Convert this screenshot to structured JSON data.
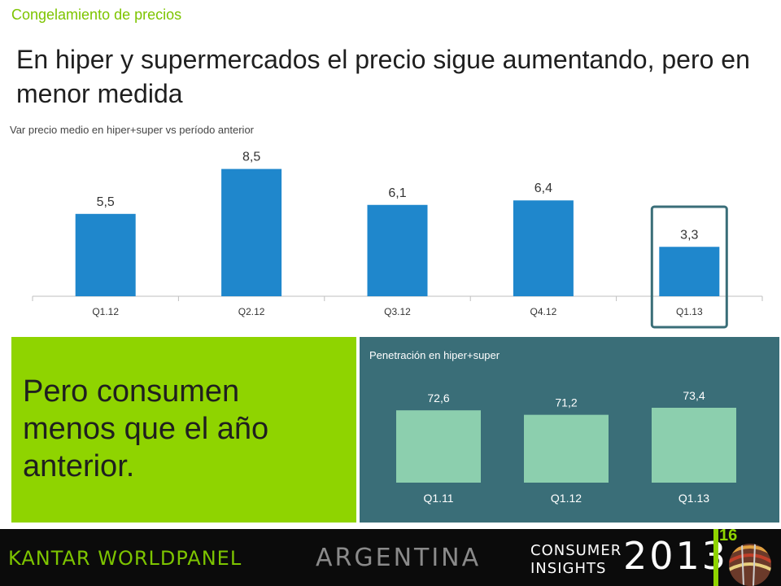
{
  "section_tag": "Congelamiento de precios",
  "headline": "En hiper y supermercados el precio sigue aumentando, pero en menor medida",
  "green_panel": {
    "text": "Pero consumen\nmenos que el año\nanterior."
  },
  "footer": {
    "brand": "KANTAR WORLDPANEL",
    "country": "ARGENTINA",
    "line1": "CONSUMER",
    "line2": "INSIGHTS",
    "year": "2013",
    "page": "16"
  },
  "colors": {
    "accent_green": "#8fd400",
    "price_bar": "#1f87cc",
    "penetration_bar": "#8ccfae",
    "penetration_panel": "#3a6e78",
    "highlight_box": "#3a6e78"
  },
  "chart_data": [
    {
      "type": "bar",
      "title": "Var precio medio en hiper+super vs período anterior",
      "categories": [
        "Q1.12",
        "Q2.12",
        "Q3.12",
        "Q4.12",
        "Q1.13"
      ],
      "values": [
        5.5,
        8.5,
        6.1,
        6.4,
        3.3
      ],
      "value_labels": [
        "5,5",
        "8,5",
        "6,1",
        "6,4",
        "3,3"
      ],
      "highlighted_category": "Q1.13",
      "ylim": [
        0,
        10
      ]
    },
    {
      "type": "bar",
      "title": "Penetración en hiper+super",
      "categories": [
        "Q1.11",
        "Q1.12",
        "Q1.13"
      ],
      "values": [
        72.6,
        71.2,
        73.4
      ],
      "value_labels": [
        "72,6",
        "71,2",
        "73,4"
      ],
      "ylim": [
        50,
        75
      ]
    }
  ]
}
